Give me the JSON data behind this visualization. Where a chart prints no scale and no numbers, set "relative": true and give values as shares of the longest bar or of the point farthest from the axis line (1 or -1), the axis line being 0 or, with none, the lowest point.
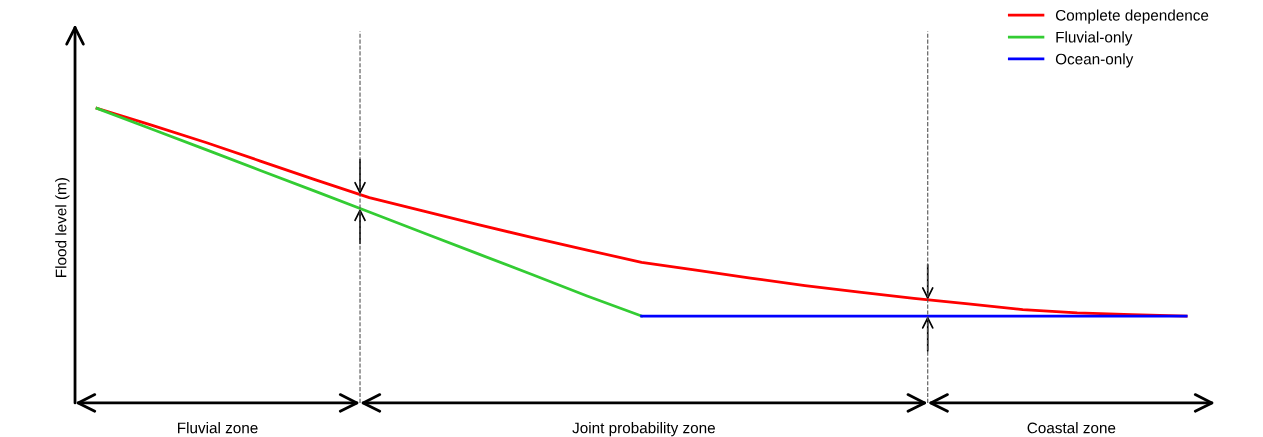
{
  "chart_data": {
    "type": "line",
    "ylabel": "Flood level (m)",
    "relative": true,
    "legend": "top right",
    "marker": "none",
    "line_style": "solid",
    "categories": [
      null,
      null,
      null,
      null,
      null,
      null,
      null,
      null,
      null,
      null,
      null,
      null,
      null,
      null,
      null,
      null,
      null,
      null,
      null,
      null,
      null
    ],
    "series": [
      {
        "name": "Complete dependence",
        "color": "#ff0000",
        "values": [
          1,
          0.943,
          0.884,
          0.821,
          0.758,
          0.697,
          0.651,
          0.605,
          0.561,
          0.519,
          0.477,
          0.451,
          0.424,
          0.398,
          0.376,
          0.355,
          0.336,
          0.317,
          0.306,
          0.3,
          0.295
        ]
      },
      {
        "name": "Fluvial-only",
        "color": "#33cc33",
        "values": [
          1,
          0.93,
          0.86,
          0.789,
          0.719,
          0.648,
          0.577,
          0.506,
          0.435,
          0.363,
          0.295,
          null,
          null,
          null,
          null,
          null,
          null,
          null,
          null,
          null,
          null
        ]
      },
      {
        "name": "Ocean-only",
        "color": "#0000ff",
        "values": [
          null,
          null,
          null,
          null,
          null,
          null,
          null,
          null,
          null,
          null,
          0.295,
          0.295,
          0.295,
          0.295,
          0.295,
          0.295,
          0.295,
          0.295,
          0.295,
          0.295,
          0.295
        ]
      }
    ],
    "annotations": [
      "Fluvial zone",
      "Joint probability zone",
      "Coastal zone"
    ]
  }
}
